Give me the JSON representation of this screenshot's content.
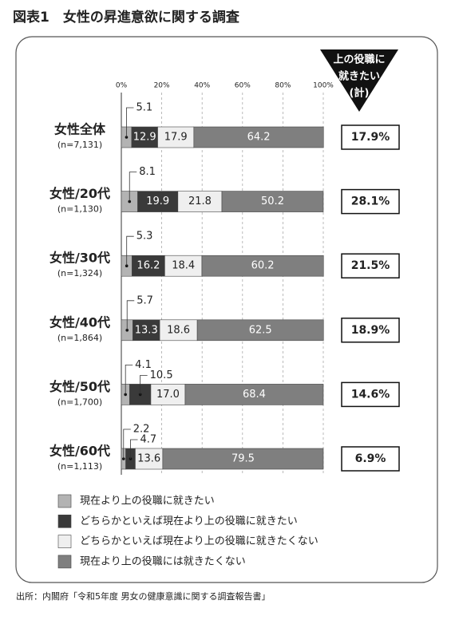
{
  "chart_data": {
    "type": "stacked-bar-horizontal",
    "title": "図表1　女性の昇進意欲に関する調査",
    "categories": [
      "女性全体",
      "女性/20代",
      "女性/30代",
      "女性/40代",
      "女性/50代",
      "女性/60代"
    ],
    "n_labels": [
      "(n=7,131)",
      "(n=1,130)",
      "(n=1,324)",
      "(n=1,864)",
      "(n=1,700)",
      "(n=1,113)"
    ],
    "xlim": [
      0,
      100
    ],
    "xticks": [
      {
        "value": 0,
        "label": "0%"
      },
      {
        "value": 20,
        "label": "20%"
      },
      {
        "value": 40,
        "label": "40%"
      },
      {
        "value": 60,
        "label": "60%"
      },
      {
        "value": 80,
        "label": "80%"
      },
      {
        "value": 100,
        "label": "100%"
      }
    ],
    "grid": true,
    "series": [
      {
        "name": "現在より上の役職に就きたい",
        "color": "#b3b3b3",
        "values": [
          5.1,
          8.1,
          5.3,
          5.7,
          4.1,
          2.2
        ]
      },
      {
        "name": "どちらかといえば現在より上の役職に就きたい",
        "color": "#3a3a3a",
        "values": [
          12.9,
          19.9,
          16.2,
          13.3,
          10.5,
          4.7
        ]
      },
      {
        "name": "どちらかといえば現在より上の役職に就きたくない",
        "color": "#efefef",
        "values": [
          17.9,
          21.8,
          18.4,
          18.6,
          17.0,
          13.6
        ],
        "value_labels": [
          "17.9",
          "21.8",
          "18.4",
          "18.6",
          "17.0",
          "13.6"
        ]
      },
      {
        "name": "現在より上の役職には就きたくない",
        "color": "#7f7f7f",
        "values": [
          64.2,
          50.2,
          60.2,
          62.5,
          68.4,
          79.5
        ]
      }
    ],
    "totals": {
      "title_lines": [
        "上の役職に",
        "就きたい",
        "(計)"
      ],
      "values": [
        17.9,
        28.1,
        21.5,
        18.9,
        14.6,
        6.9
      ],
      "value_labels": [
        "17.9%",
        "28.1%",
        "21.5%",
        "18.9%",
        "14.6%",
        "6.9%"
      ]
    },
    "source": "出所：内閣府「令和5年度 男女の健康意識に関する調査報告書」"
  }
}
